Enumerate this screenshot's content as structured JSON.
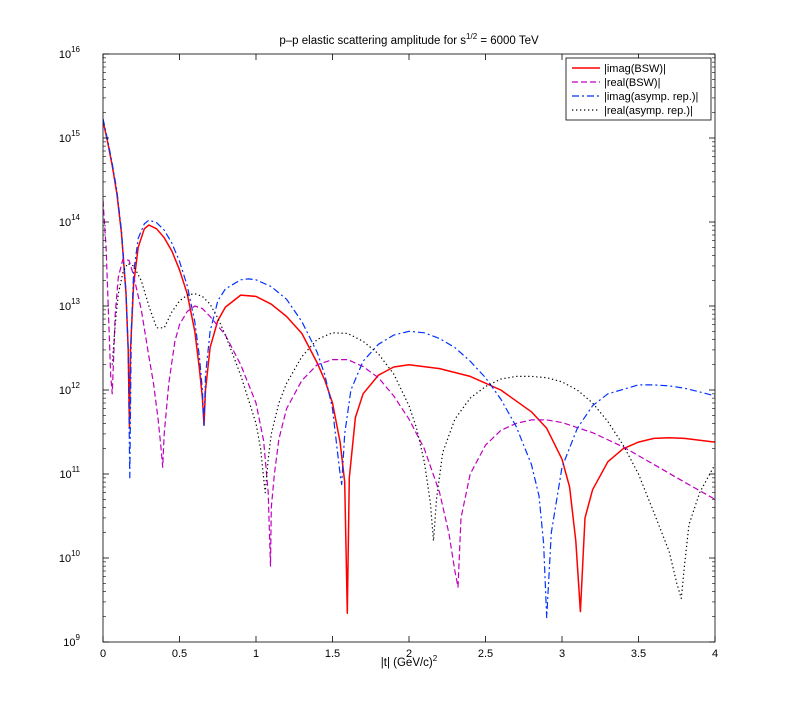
{
  "chart_data": {
    "type": "line",
    "title": {
      "prefix": "p–p elastic scattering amplitude for s",
      "superscript": "1/2",
      "suffix": " = 6000 TeV"
    },
    "xlabel": {
      "text": "|t| (GeV/c)",
      "superscript": "2"
    },
    "ylabel": "",
    "y_scale": "log",
    "xlim": [
      0,
      4
    ],
    "ylim": [
      1000000000.0,
      1e+16
    ],
    "x_ticks": [
      "0",
      "0.5",
      "1",
      "1.5",
      "2",
      "2.5",
      "3",
      "3.5",
      "4"
    ],
    "x_tick_values": [
      0,
      0.5,
      1,
      1.5,
      2,
      2.5,
      3,
      3.5,
      4
    ],
    "y_ticks": [
      {
        "base": "10",
        "exp": "9",
        "value": 1000000000.0
      },
      {
        "base": "10",
        "exp": "10",
        "value": 10000000000.0
      },
      {
        "base": "10",
        "exp": "11",
        "value": 100000000000.0
      },
      {
        "base": "10",
        "exp": "12",
        "value": 1000000000000.0
      },
      {
        "base": "10",
        "exp": "13",
        "value": 10000000000000.0
      },
      {
        "base": "10",
        "exp": "14",
        "value": 100000000000000.0
      },
      {
        "base": "10",
        "exp": "15",
        "value": 1000000000000000.0
      },
      {
        "base": "10",
        "exp": "16",
        "value": 1e+16
      }
    ],
    "grid": false,
    "legend_position": "top-right",
    "series": [
      {
        "name": "|imag(BSW)|",
        "color": "#ff0000",
        "dash": "solid",
        "x": [
          0,
          0.03,
          0.06,
          0.09,
          0.12,
          0.15,
          0.165,
          0.173,
          0.18,
          0.2,
          0.23,
          0.27,
          0.3,
          0.35,
          0.4,
          0.45,
          0.5,
          0.55,
          0.6,
          0.63,
          0.65,
          0.66,
          0.67,
          0.7,
          0.75,
          0.8,
          0.9,
          1.0,
          1.1,
          1.2,
          1.3,
          1.4,
          1.45,
          1.5,
          1.55,
          1.58,
          1.597,
          1.61,
          1.65,
          1.7,
          1.8,
          1.9,
          2.0,
          2.2,
          2.4,
          2.6,
          2.8,
          2.9,
          3.0,
          3.05,
          3.09,
          3.12,
          3.15,
          3.2,
          3.3,
          3.4,
          3.5,
          3.6,
          3.7,
          3.8,
          4.0
        ],
        "y": [
          1600000000000000.0,
          900000000000000.0,
          470000000000000.0,
          220000000000000.0,
          75000000000000.0,
          14000000000000.0,
          3000000000000.0,
          350000000000.0,
          3000000000000.0,
          18000000000000.0,
          50000000000000.0,
          83000000000000.0,
          92000000000000.0,
          83000000000000.0,
          65000000000000.0,
          45000000000000.0,
          27000000000000.0,
          14000000000000.0,
          5000000000000.0,
          1800000000000.0,
          800000000000.0,
          380000000000.0,
          1000000000000.0,
          3200000000000.0,
          6700000000000.0,
          9700000000000.0,
          13500000000000.0,
          13000000000000.0,
          10500000000000.0,
          7500000000000.0,
          4700000000000.0,
          2100000000000.0,
          1300000000000.0,
          700000000000.0,
          240000000000.0,
          80000000000.0,
          2200000000.0,
          90000000000.0,
          470000000000.0,
          900000000000.0,
          1500000000000.0,
          1880000000000.0,
          2000000000000.0,
          1800000000000.0,
          1450000000000.0,
          1000000000000.0,
          550000000000.0,
          350000000000.0,
          150000000000.0,
          70000000000.0,
          16000000000.0,
          2300000000.0,
          30000000000.0,
          65000000000.0,
          140000000000.0,
          200000000000.0,
          240000000000.0,
          265000000000.0,
          270000000000.0,
          265000000000.0,
          240000000000.0
        ]
      },
      {
        "name": "|real(BSW)|",
        "color": "#bf00bf",
        "dash": "dashed",
        "x": [
          0,
          0.02,
          0.04,
          0.05,
          0.06,
          0.07,
          0.08,
          0.1,
          0.13,
          0.17,
          0.2,
          0.25,
          0.3,
          0.33,
          0.36,
          0.38,
          0.39,
          0.4,
          0.43,
          0.47,
          0.5,
          0.55,
          0.6,
          0.65,
          0.7,
          0.8,
          0.9,
          1.0,
          1.05,
          1.08,
          1.095,
          1.1,
          1.12,
          1.15,
          1.2,
          1.3,
          1.4,
          1.5,
          1.6,
          1.7,
          1.8,
          1.9,
          2.0,
          2.1,
          2.2,
          2.26,
          2.3,
          2.32,
          2.34,
          2.4,
          2.5,
          2.6,
          2.7,
          2.8,
          2.9,
          3.0,
          3.2,
          3.4,
          3.6,
          3.8,
          4.0
        ],
        "y": [
          180000000000000.0,
          50000000000000.0,
          5000000000000.0,
          1500000000000.0,
          900000000000.0,
          2500000000000.0,
          8000000000000.0,
          22000000000000.0,
          36000000000000.0,
          35000000000000.0,
          23000000000000.0,
          9000000000000.0,
          2500000000000.0,
          1200000000000.0,
          450000000000.0,
          200000000000.0,
          120000000000.0,
          300000000000.0,
          1200000000000.0,
          3800000000000.0,
          6000000000000.0,
          8600000000000.0,
          10000000000000.0,
          9300000000000.0,
          7500000000000.0,
          4500000000000.0,
          2000000000000.0,
          700000000000.0,
          250000000000.0,
          60000000000.0,
          8000000000.0,
          40000000000.0,
          100000000000.0,
          260000000000.0,
          600000000000.0,
          1300000000000.0,
          2000000000000.0,
          2300000000000.0,
          2300000000000.0,
          1900000000000.0,
          1400000000000.0,
          850000000000.0,
          450000000000.0,
          200000000000.0,
          60000000000.0,
          20000000000.0,
          7000000000.0,
          4500000000.0,
          30000000000.0,
          100000000000.0,
          220000000000.0,
          330000000000.0,
          400000000000.0,
          440000000000.0,
          440000000000.0,
          410000000000.0,
          310000000000.0,
          210000000000.0,
          130000000000.0,
          80000000000.0,
          50000000000.0
        ]
      },
      {
        "name": "|imag(asymp. rep.)|",
        "color": "#0033ff",
        "dash": "dashdot",
        "x": [
          0,
          0.03,
          0.06,
          0.09,
          0.12,
          0.15,
          0.165,
          0.175,
          0.185,
          0.2,
          0.23,
          0.27,
          0.3,
          0.35,
          0.4,
          0.45,
          0.5,
          0.55,
          0.6,
          0.63,
          0.65,
          0.66,
          0.67,
          0.7,
          0.75,
          0.8,
          0.9,
          0.95,
          1.0,
          1.1,
          1.2,
          1.3,
          1.4,
          1.45,
          1.5,
          1.53,
          1.55,
          1.56,
          1.58,
          1.62,
          1.7,
          1.8,
          1.9,
          2.0,
          2.1,
          2.2,
          2.3,
          2.4,
          2.5,
          2.6,
          2.7,
          2.8,
          2.85,
          2.88,
          2.9,
          2.93,
          3.0,
          3.1,
          3.2,
          3.3,
          3.5,
          3.6,
          3.7,
          3.8,
          3.9,
          4.0
        ],
        "y": [
          1700000000000000.0,
          950000000000000.0,
          500000000000000.0,
          240000000000000.0,
          80000000000000.0,
          15000000000000.0,
          3000000000000.0,
          90000000000.0,
          5000000000000.0,
          25000000000000.0,
          64000000000000.0,
          95000000000000.0,
          105000000000000.0,
          98000000000000.0,
          80000000000000.0,
          56000000000000.0,
          34000000000000.0,
          17500000000000.0,
          6500000000000.0,
          2500000000000.0,
          1000000000000.0,
          380000000000.0,
          1500000000000.0,
          5000000000000.0,
          11500000000000.0,
          16000000000000.0,
          20500000000000.0,
          21000000000000.0,
          20500000000000.0,
          17000000000000.0,
          12000000000000.0,
          6500000000000.0,
          2800000000000.0,
          1500000000000.0,
          600000000000.0,
          200000000000.0,
          100000000000.0,
          75000000000.0,
          300000000000.0,
          1000000000000.0,
          2200000000000.0,
          3500000000000.0,
          4500000000000.0,
          5000000000000.0,
          4800000000000.0,
          4100000000000.0,
          3200000000000.0,
          2200000000000.0,
          1400000000000.0,
          780000000000.0,
          370000000000.0,
          130000000000.0,
          55000000000.0,
          15000000000.0,
          1950000000.0,
          20000000000.0,
          120000000000.0,
          350000000000.0,
          650000000000.0,
          900000000000.0,
          1150000000000.0,
          1150000000000.0,
          1120000000000.0,
          1050000000000.0,
          950000000000.0,
          850000000000.0
        ]
      },
      {
        "name": "|real(asymp. rep.)|",
        "color": "#000000",
        "dash": "dotted",
        "x": [
          0.06,
          0.08,
          0.1,
          0.13,
          0.16,
          0.2,
          0.25,
          0.3,
          0.35,
          0.4,
          0.45,
          0.5,
          0.55,
          0.6,
          0.65,
          0.7,
          0.75,
          0.8,
          0.9,
          1.0,
          1.03,
          1.05,
          1.06,
          1.08,
          1.1,
          1.15,
          1.2,
          1.3,
          1.4,
          1.5,
          1.6,
          1.7,
          1.8,
          1.9,
          2.0,
          2.05,
          2.1,
          2.14,
          2.16,
          2.18,
          2.22,
          2.3,
          2.4,
          2.5,
          2.6,
          2.7,
          2.8,
          2.9,
          3.0,
          3.1,
          3.2,
          3.3,
          3.4,
          3.5,
          3.6,
          3.7,
          3.75,
          3.78,
          3.8,
          3.83,
          3.9,
          4.0
        ],
        "y": [
          2000000000000.0,
          6000000000000.0,
          14000000000000.0,
          25000000000000.0,
          32000000000000.0,
          30000000000000.0,
          20000000000000.0,
          10000000000000.0,
          5500000000000.0,
          5500000000000.0,
          8500000000000.0,
          11500000000000.0,
          13500000000000.0,
          14000000000000.0,
          13000000000000.0,
          10500000000000.0,
          7200000000000.0,
          4500000000000.0,
          1500000000000.0,
          400000000000.0,
          200000000000.0,
          90000000000.0,
          60000000000.0,
          150000000000.0,
          300000000000.0,
          700000000000.0,
          1200000000000.0,
          2500000000000.0,
          4000000000000.0,
          4800000000000.0,
          4700000000000.0,
          3800000000000.0,
          2700000000000.0,
          1550000000000.0,
          650000000000.0,
          350000000000.0,
          140000000000.0,
          45000000000.0,
          16000000000.0,
          50000000000.0,
          180000000000.0,
          450000000000.0,
          800000000000.0,
          1100000000000.0,
          1350000000000.0,
          1450000000000.0,
          1450000000000.0,
          1400000000000.0,
          1250000000000.0,
          1000000000000.0,
          700000000000.0,
          420000000000.0,
          220000000000.0,
          100000000000.0,
          35000000000.0,
          12000000000.0,
          5000000000.0,
          3300000000.0,
          8000000000.0,
          25000000000.0,
          60000000000.0,
          130000000000.0
        ]
      }
    ]
  }
}
